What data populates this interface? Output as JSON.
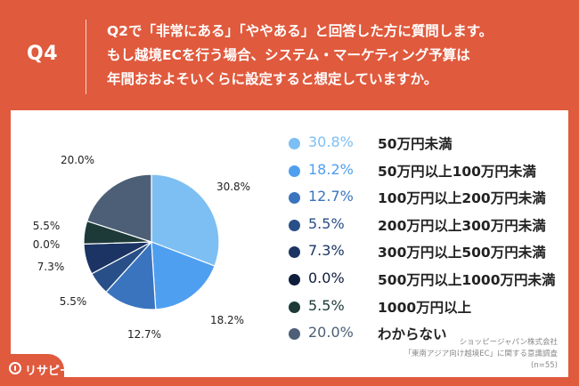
{
  "question": {
    "tag": "Q4",
    "lines": [
      "Q2で「非常にある」「ややある」と回答した方に質問します。",
      "もし越境ECを行う場合、システム・マーケティング予算は",
      "年間おおよそいくらに設定すると想定していますか。"
    ]
  },
  "chart_data": {
    "type": "pie",
    "slices": [
      {
        "label": "50万円未満",
        "value": 30.8,
        "display": "30.8%",
        "color": "#7dbff3"
      },
      {
        "label": "50万円以上100万円未満",
        "value": 18.2,
        "display": "18.2%",
        "color": "#4f9ff0"
      },
      {
        "label": "100万円以上200万円未満",
        "value": 12.7,
        "display": "12.7%",
        "color": "#3a74bf"
      },
      {
        "label": "200万円以上300万円未満",
        "value": 5.5,
        "display": "5.5%",
        "color": "#284f87"
      },
      {
        "label": "300万円以上500万円未満",
        "value": 7.3,
        "display": "7.3%",
        "color": "#1b3464"
      },
      {
        "label": "500万円以上1000万円未満",
        "value": 0.0,
        "display": "0.0%",
        "color": "#0f1d3d"
      },
      {
        "label": "1000万円以上",
        "value": 5.5,
        "display": "5.5%",
        "color": "#1d3a38"
      },
      {
        "label": "わからない",
        "value": 20.0,
        "display": "20.0%",
        "color": "#4d5f77"
      }
    ],
    "legend_position": "right"
  },
  "source": {
    "lines": [
      "ショッピージャパン株式会社",
      "「東南アジア向け越境EC」に関する意識調査",
      "(n=55)"
    ]
  },
  "logo": {
    "text": "リサピー"
  }
}
